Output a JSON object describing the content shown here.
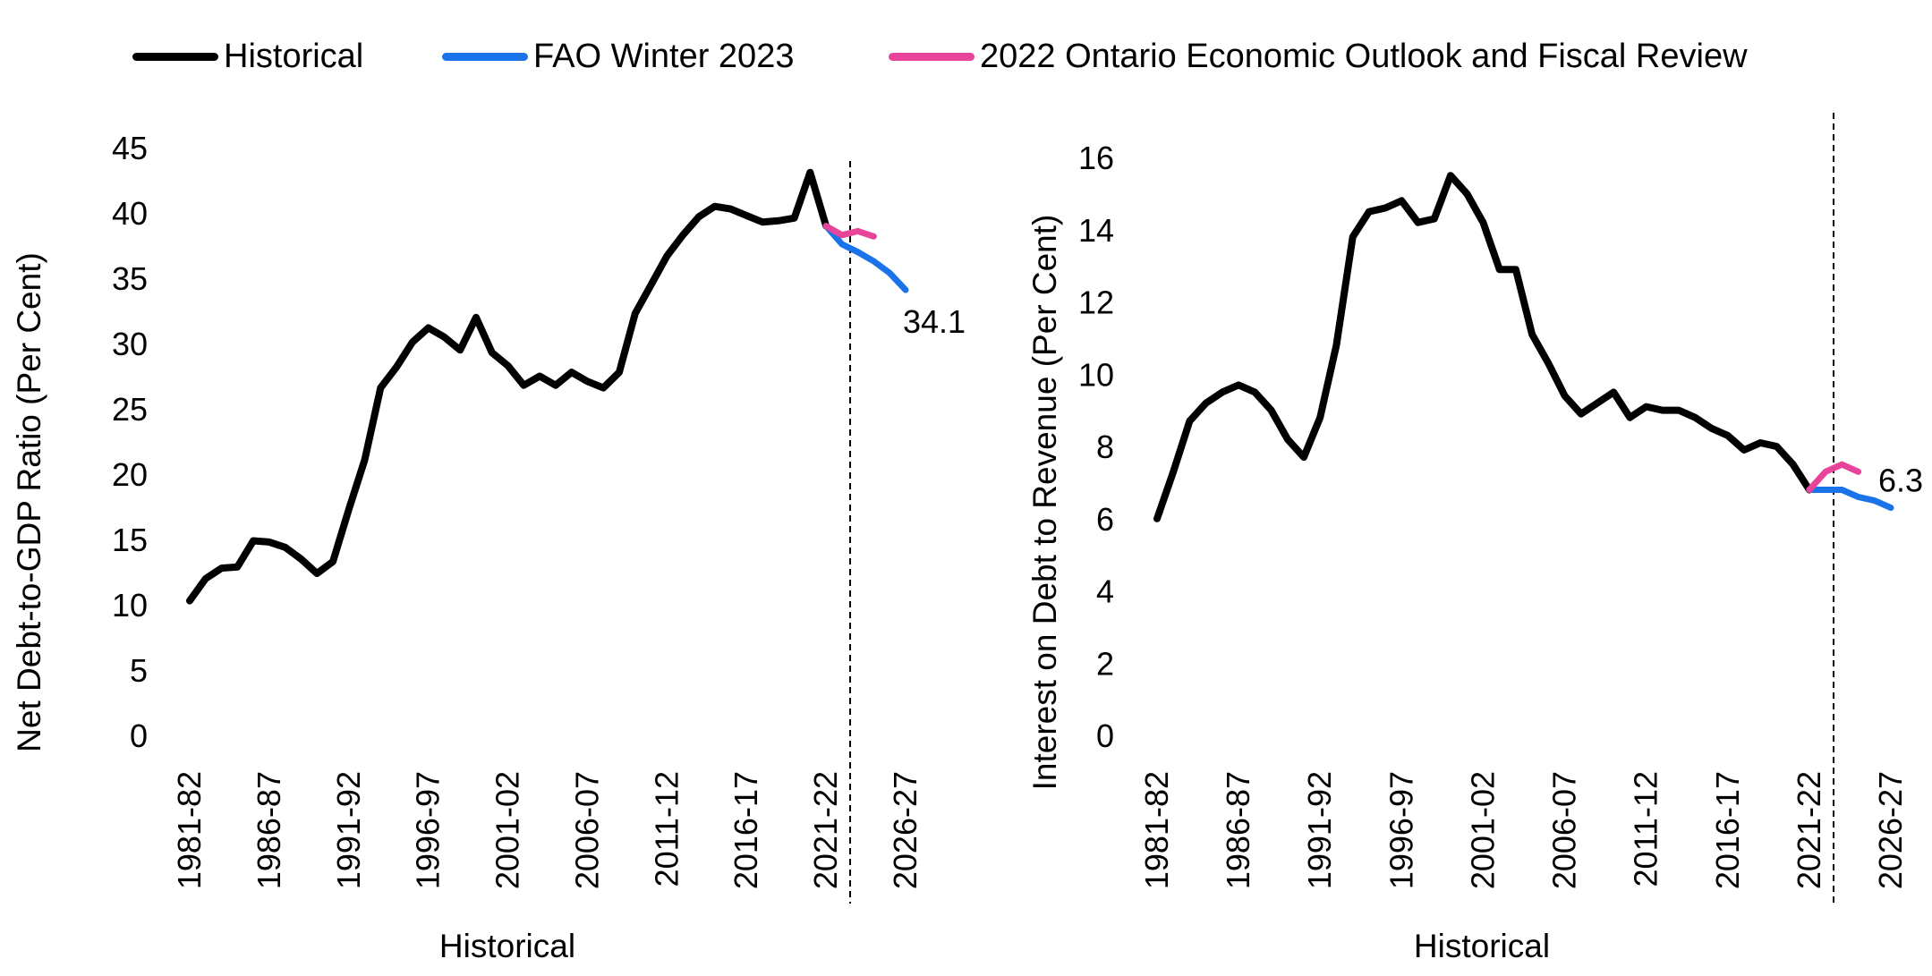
{
  "legend": {
    "historical": "Historical",
    "fao": "FAO Winter 2023",
    "ontario": "2022 Ontario Economic Outlook and Fiscal Review"
  },
  "colors": {
    "historical": "#000000",
    "fao": "#1a73e8",
    "ontario": "#e8449a"
  },
  "chart_data": [
    {
      "type": "line",
      "ylabel": "Net Debt-to-GDP Ratio (Per Cent)",
      "xlabel": "Historical",
      "ylim": [
        0,
        45
      ],
      "yticks": [
        0,
        5,
        10,
        15,
        20,
        25,
        30,
        35,
        40,
        45
      ],
      "xticks": [
        "1981-82",
        "1986-87",
        "1991-92",
        "1996-97",
        "2001-02",
        "2006-07",
        "2011-12",
        "2016-17",
        "2021-22",
        "2026-27"
      ],
      "forecast_divider_after": "2022-23",
      "end_label": "34.1",
      "series": [
        {
          "key": "historical",
          "start": "1981-82",
          "values": [
            10.3,
            12.0,
            12.8,
            12.9,
            14.9,
            14.8,
            14.4,
            13.5,
            12.4,
            13.3,
            17.3,
            21.1,
            26.6,
            28.2,
            30.1,
            31.2,
            30.5,
            29.5,
            32.0,
            29.3,
            28.3,
            26.8,
            27.5,
            26.8,
            27.8,
            27.1,
            26.6,
            27.8,
            32.3,
            34.5,
            36.7,
            38.3,
            39.7,
            40.5,
            40.3,
            39.8,
            39.3,
            39.4,
            39.6,
            43.1,
            39.0
          ]
        },
        {
          "key": "fao",
          "start": "2021-22",
          "values": [
            39.0,
            37.6,
            37.0,
            36.3,
            35.4,
            34.1
          ]
        },
        {
          "key": "ontario",
          "start": "2021-22",
          "values": [
            39.0,
            38.3,
            38.6,
            38.2
          ]
        }
      ]
    },
    {
      "type": "line",
      "ylabel": "Interest on Debt to Revenue (Per Cent)",
      "xlabel": "Historical",
      "ylim": [
        0,
        16
      ],
      "yticks": [
        0,
        2,
        4,
        6,
        8,
        10,
        12,
        14,
        16
      ],
      "xticks": [
        "1981-82",
        "1986-87",
        "1991-92",
        "1996-97",
        "2001-02",
        "2006-07",
        "2011-12",
        "2016-17",
        "2021-22",
        "2026-27"
      ],
      "forecast_divider_after": "2022-23",
      "end_label": "6.3",
      "series": [
        {
          "key": "historical",
          "start": "1981-82",
          "values": [
            6.0,
            7.3,
            8.7,
            9.2,
            9.5,
            9.7,
            9.5,
            9.0,
            8.2,
            7.7,
            8.8,
            10.8,
            13.8,
            14.5,
            14.6,
            14.8,
            14.2,
            14.3,
            15.5,
            15.0,
            14.2,
            12.9,
            12.9,
            11.1,
            10.3,
            9.4,
            8.9,
            9.2,
            9.5,
            8.8,
            9.1,
            9.0,
            9.0,
            8.8,
            8.5,
            8.3,
            7.9,
            8.1,
            8.0,
            7.5,
            6.8
          ]
        },
        {
          "key": "fao",
          "start": "2021-22",
          "values": [
            6.8,
            6.8,
            6.8,
            6.6,
            6.5,
            6.3
          ]
        },
        {
          "key": "ontario",
          "start": "2021-22",
          "values": [
            6.8,
            7.3,
            7.5,
            7.3
          ]
        }
      ]
    }
  ]
}
